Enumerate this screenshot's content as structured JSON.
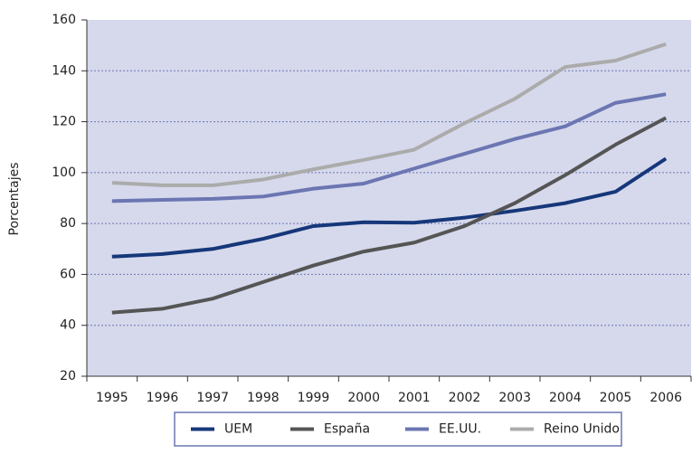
{
  "chart_data": {
    "type": "line",
    "y_label": "Porcentajes",
    "categories": [
      "1995",
      "1996",
      "1997",
      "1998",
      "1999",
      "2000",
      "2001",
      "2002",
      "2003",
      "2004",
      "2005",
      "2006"
    ],
    "series": [
      {
        "name": "UEM",
        "color": "#16377a",
        "values": [
          67,
          68,
          70,
          74,
          79,
          80.5,
          80.3,
          82.3,
          85,
          88,
          92.5,
          105.5
        ]
      },
      {
        "name": "España",
        "color": "#555555",
        "values": [
          45,
          46.5,
          50.5,
          57,
          63.5,
          69,
          72.5,
          79,
          88,
          99,
          111,
          121.5
        ]
      },
      {
        "name": "EE.UU.",
        "color": "#6b76b2",
        "values": [
          88.8,
          89.3,
          89.7,
          90.6,
          93.7,
          95.7,
          101.6,
          107.4,
          113.2,
          118.2,
          127.4,
          130.8
        ]
      },
      {
        "name": "Reino Unido",
        "color": "#ababab",
        "values": [
          96,
          95,
          95,
          97.3,
          101.3,
          105,
          109,
          119.4,
          129,
          141.5,
          144,
          150.5
        ]
      }
    ],
    "ylim": [
      20,
      160
    ],
    "yticks": [
      20,
      40,
      60,
      80,
      100,
      120,
      140,
      160
    ],
    "grid": true,
    "background": "#d6d9ec",
    "legend": "bottom"
  }
}
